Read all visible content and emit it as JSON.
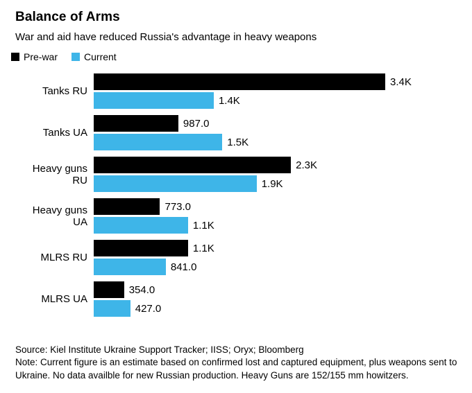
{
  "header": {
    "title": "Balance of Arms",
    "subtitle": "War and aid have reduced Russia's advantage in heavy weapons"
  },
  "legend": [
    {
      "id": "pre-war",
      "label": "Pre-war",
      "color": "#000000"
    },
    {
      "id": "current",
      "label": "Current",
      "color": "#3eb5e8"
    }
  ],
  "chart_data": {
    "type": "bar",
    "orientation": "horizontal",
    "title": "Balance of Arms",
    "subtitle": "War and aid have reduced Russia's advantage in heavy weapons",
    "categories": [
      "Tanks RU",
      "Tanks UA",
      "Heavy guns RU",
      "Heavy guns UA",
      "MLRS RU",
      "MLRS UA"
    ],
    "series": [
      {
        "name": "Pre-war",
        "color": "#000000",
        "values": [
          3400,
          987,
          2300,
          773,
          1100,
          354
        ],
        "labels": [
          "3.4K",
          "987.0",
          "2.3K",
          "773.0",
          "1.1K",
          "354.0"
        ]
      },
      {
        "name": "Current",
        "color": "#3eb5e8",
        "values": [
          1400,
          1500,
          1900,
          1100,
          841,
          427
        ],
        "labels": [
          "1.4K",
          "1.5K",
          "1.9K",
          "1.1K",
          "841.0",
          "427.0"
        ]
      }
    ],
    "xlim": [
      0,
      3400
    ],
    "grid": false,
    "legend_position": "top-left",
    "value_labels": true
  },
  "footer": {
    "source": "Source: Kiel Institute Ukraine Support Tracker; IISS; Oryx; Bloomberg",
    "note": "Note: Current figure is an estimate based on confirmed lost and captured equipment, plus weapons sent to Ukraine. No data availble for new Russian production. Heavy Guns are 152/155 mm howitzers."
  }
}
